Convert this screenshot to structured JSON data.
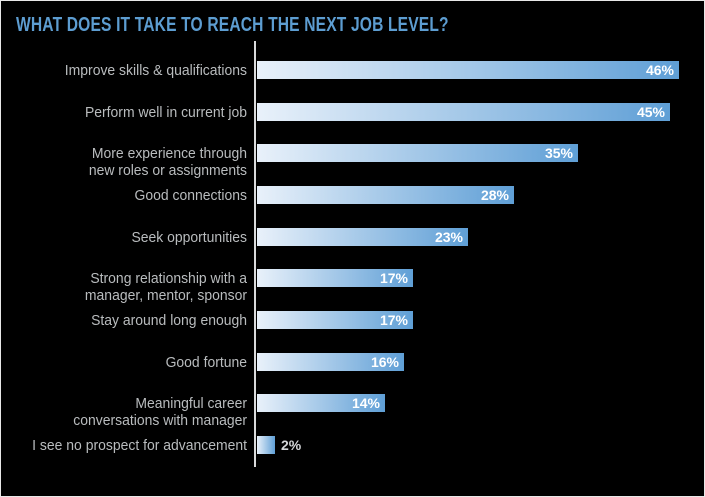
{
  "header": {
    "title": "WHAT DOES IT TAKE TO REACH THE NEXT JOB LEVEL?"
  },
  "colors": {
    "background": "#000000",
    "frame_border": "#e8e8e8",
    "title_blue": "#5d9dd1",
    "category_label_gray": "#b9bcbe",
    "axis_line": "#d9dadb",
    "bar_gradient_start": "#e9f1fa",
    "bar_gradient_end": "#5f9fd6",
    "value_label_inside": "#ffffff",
    "value_label_outside": "#d4d6d8"
  },
  "chart_data": {
    "type": "bar",
    "orientation": "horizontal",
    "title": "WHAT DOES IT TAKE TO REACH THE NEXT JOB LEVEL?",
    "xlabel": "",
    "ylabel": "",
    "unit": "%",
    "xlim": [
      0,
      49
    ],
    "grid": false,
    "legend": "none",
    "categories": [
      "Improve skills & qualifications",
      "Perform well in current job",
      "More experience through new roles or assignments",
      "Good connections",
      "Seek opportunities",
      "Strong relationship with a manager, mentor, sponsor",
      "Stay around long enough",
      "Good fortune",
      "Meaningful career conversations with manager",
      "I see no prospect for advancement"
    ],
    "values": [
      46,
      45,
      35,
      28,
      23,
      17,
      17,
      16,
      14,
      2
    ],
    "rows": [
      {
        "label_lines": [
          "Improve skills & qualifications"
        ],
        "value": 46,
        "display": "46%"
      },
      {
        "label_lines": [
          "Perform well in current job"
        ],
        "value": 45,
        "display": "45%"
      },
      {
        "label_lines": [
          "More experience through",
          "new roles or assignments"
        ],
        "value": 35,
        "display": "35%"
      },
      {
        "label_lines": [
          "Good connections"
        ],
        "value": 28,
        "display": "28%"
      },
      {
        "label_lines": [
          "Seek opportunities"
        ],
        "value": 23,
        "display": "23%"
      },
      {
        "label_lines": [
          "Strong relationship with a",
          "manager, mentor, sponsor"
        ],
        "value": 17,
        "display": "17%"
      },
      {
        "label_lines": [
          "Stay around long enough"
        ],
        "value": 17,
        "display": "17%"
      },
      {
        "label_lines": [
          "Good fortune"
        ],
        "value": 16,
        "display": "16%"
      },
      {
        "label_lines": [
          "Meaningful career",
          "conversations with manager"
        ],
        "value": 14,
        "display": "14%"
      },
      {
        "label_lines": [
          "I see no prospect for advancement"
        ],
        "value": 2,
        "display": "2%"
      }
    ]
  }
}
